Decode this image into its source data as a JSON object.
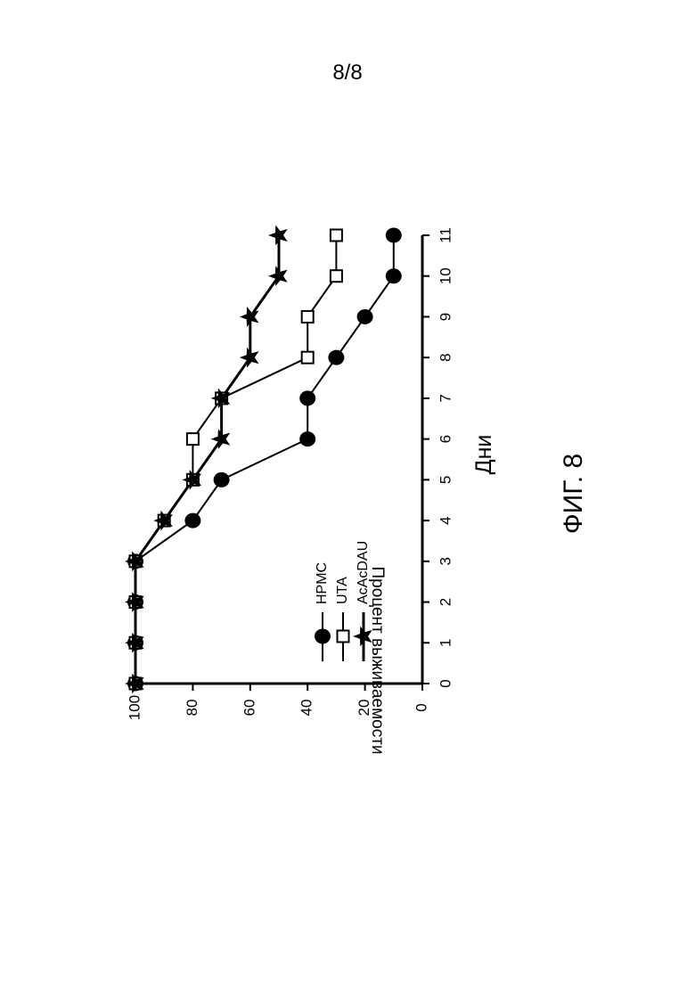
{
  "page": {
    "number": "8/8",
    "figure_label": "ФИГ. 8"
  },
  "chart_data": {
    "type": "line",
    "orientation": "rotated 90° counter-clockwise on the page",
    "title": "",
    "xlabel": "Дни",
    "ylabel": "Процент выживаемости",
    "x": [
      0,
      1,
      2,
      3,
      4,
      5,
      6,
      7,
      8,
      9,
      10,
      11
    ],
    "xlim": [
      0,
      11
    ],
    "ylim": [
      0,
      100
    ],
    "xticks": [
      "0",
      "1",
      "2",
      "3",
      "4",
      "5",
      "6",
      "7",
      "8",
      "9",
      "10",
      "11"
    ],
    "yticks": [
      "0",
      "20",
      "40",
      "60",
      "80",
      "100"
    ],
    "grid": false,
    "legend_position": "inside plot area, lower-middle",
    "series": [
      {
        "name": "HPMC",
        "marker": "filled-circle",
        "values": [
          100,
          100,
          100,
          100,
          80,
          70,
          40,
          40,
          30,
          20,
          10,
          10
        ]
      },
      {
        "name": "UTA",
        "marker": "open-square",
        "values": [
          100,
          100,
          100,
          100,
          90,
          80,
          80,
          70,
          40,
          40,
          30,
          30
        ]
      },
      {
        "name": "AcAcDAU",
        "marker": "filled-star",
        "values": [
          100,
          100,
          100,
          100,
          90,
          80,
          70,
          70,
          60,
          60,
          50,
          50
        ]
      }
    ]
  }
}
